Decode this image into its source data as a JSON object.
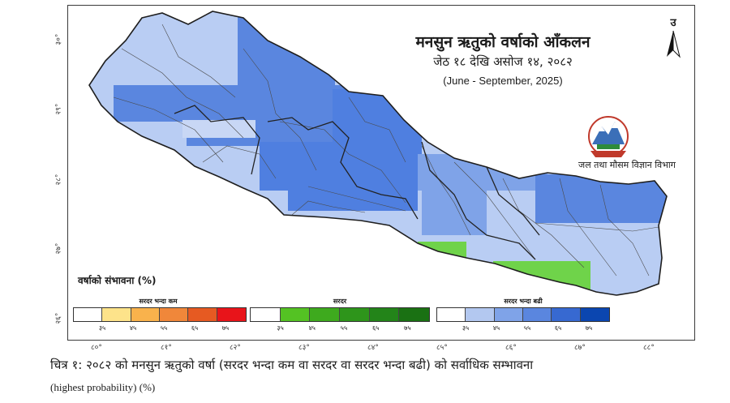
{
  "map": {
    "title": "मनसुन ऋतुको वर्षाको आँकलन",
    "subtitle_nepali": "जेठ १८ देखि असोज १४, २०८२",
    "subtitle_english": "(June - September, 2025)",
    "north_label": "उ",
    "organization": "जल तथा मौसम विज्ञान विभाग",
    "lat_labels": [
      "३०°",
      "२९°",
      "२८°",
      "२७°",
      "२६°"
    ],
    "lon_labels": [
      "८०°",
      "८१°",
      "८२°",
      "८३°",
      "८४°",
      "८५°",
      "८६°",
      "८७°",
      "८८°"
    ],
    "colors": {
      "above_normal_main": "#4f7fe0",
      "above_normal_light": "#b9cdf3",
      "normal": "#6fd34a",
      "border": "#2d2d2d"
    }
  },
  "legend": {
    "title": "वर्षाको संभावना (%)",
    "groups": [
      {
        "name": "सरदर भन्दा कम",
        "colors": [
          "#ffffff",
          "#fde38a",
          "#f9b24c",
          "#f0873a",
          "#e65a22",
          "#e8141a"
        ],
        "ticks": [
          "३५",
          "४५",
          "५५",
          "६५",
          "७५"
        ]
      },
      {
        "name": "सरदर",
        "colors": [
          "#ffffff",
          "#54c223",
          "#3eaa1e",
          "#2e951b",
          "#238419",
          "#1a7113"
        ],
        "ticks": [
          "३५",
          "४५",
          "५५",
          "६५",
          "७५"
        ]
      },
      {
        "name": "सरदर भन्दा बढी",
        "colors": [
          "#ffffff",
          "#b3c8f0",
          "#7fa3e8",
          "#5a86df",
          "#3769d1",
          "#0b46b0"
        ],
        "ticks": [
          "३५",
          "४५",
          "५५",
          "६५",
          "७५"
        ]
      }
    ]
  },
  "caption": {
    "line1": "चित्र १: २०८२ को मनसुन ऋतुको वर्षा (सरदर भन्दा कम वा सरदर वा सरदर भन्दा बढी) को सर्वाधिक सम्भावना",
    "line2": "(highest probability) (%)"
  }
}
